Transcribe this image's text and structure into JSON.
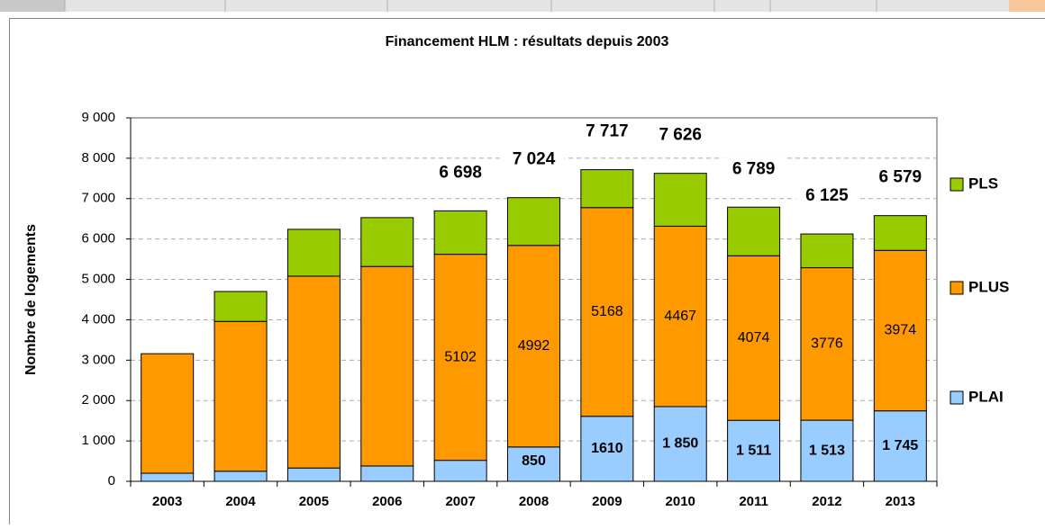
{
  "chart_data": {
    "type": "stacked_bar",
    "title": "Financement HLM : résultats depuis 2003",
    "y_label": "Nombre de logements",
    "categories": [
      "2003",
      "2004",
      "2005",
      "2006",
      "2007",
      "2008",
      "2009",
      "2010",
      "2011",
      "2012",
      "2013"
    ],
    "series": [
      {
        "name": "PLAI",
        "color": "#99ccff",
        "values": [
          200,
          250,
          330,
          380,
          520,
          850,
          1610,
          1850,
          1511,
          1513,
          1745
        ],
        "value_labels": [
          null,
          null,
          null,
          null,
          null,
          "850",
          "1610",
          "1 850",
          "1 511",
          "1 513",
          "1 745"
        ]
      },
      {
        "name": "PLUS",
        "color": "#ff9900",
        "values": [
          2960,
          3710,
          4750,
          4940,
          5102,
          4992,
          5168,
          4467,
          4074,
          3776,
          3974
        ],
        "value_labels": [
          null,
          null,
          null,
          null,
          "5102",
          "4992",
          "5168",
          "4467",
          "4074",
          "3776",
          "3974"
        ]
      },
      {
        "name": "PLS",
        "color": "#99cc00",
        "values": [
          0,
          740,
          1160,
          1210,
          1076,
          1182,
          939,
          1309,
          1204,
          836,
          860
        ]
      }
    ],
    "totals": [
      null,
      null,
      null,
      null,
      6698,
      7024,
      7717,
      7626,
      6789,
      6125,
      6579
    ],
    "total_labels": [
      null,
      null,
      null,
      null,
      "6 698",
      "7 024",
      "7 717",
      "7 626",
      "6 789",
      "6 125",
      "6 579"
    ],
    "ylim": [
      0,
      9000
    ],
    "yticks": [
      0,
      {
        "value": 1000,
        "label": "1 000"
      },
      {
        "value": 2000,
        "label": "2 000"
      },
      {
        "value": 3000,
        "label": "3 000"
      },
      {
        "value": 4000,
        "label": "4 000"
      },
      {
        "value": 5000,
        "label": "5 000"
      },
      {
        "value": 6000,
        "label": "6 000"
      },
      {
        "value": 7000,
        "label": "7 000"
      },
      {
        "value": 8000,
        "label": "8 000"
      },
      {
        "value": 9000,
        "label": "9 000"
      }
    ],
    "grid": true,
    "legend": "right"
  }
}
